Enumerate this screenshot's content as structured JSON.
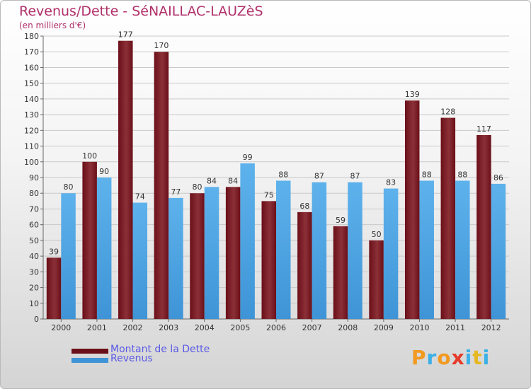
{
  "colors": {
    "debt": "#6a0f18",
    "debt_light": "#8c3038",
    "revenue": "#3e94d6",
    "revenue_light": "#5eb2ec",
    "title": "#b0306a",
    "legend_text": "#5a5ae6"
  },
  "logo": {
    "text": "Proxiti"
  },
  "chart_data": {
    "type": "bar",
    "title": "Revenus/Dette - SéNAILLAC-LAUZèS",
    "subtitle": "(en milliers d'€)",
    "xlabel": "",
    "ylabel": "",
    "ylim": [
      0,
      180
    ],
    "yticks": [
      0,
      10,
      20,
      30,
      40,
      50,
      60,
      70,
      80,
      90,
      100,
      110,
      120,
      130,
      140,
      150,
      160,
      170,
      180
    ],
    "grid": "horizontal",
    "legend_position": "bottom-left",
    "categories": [
      "2000",
      "2001",
      "2002",
      "2003",
      "2004",
      "2005",
      "2006",
      "2007",
      "2008",
      "2009",
      "2010",
      "2011",
      "2012"
    ],
    "series": [
      {
        "name": "Montant de la Dette",
        "values": [
          39,
          100,
          177,
          170,
          80,
          84,
          75,
          68,
          59,
          50,
          139,
          128,
          117
        ]
      },
      {
        "name": "Revenus",
        "values": [
          80,
          90,
          74,
          77,
          84,
          99,
          88,
          87,
          87,
          83,
          88,
          88,
          86
        ]
      }
    ]
  }
}
